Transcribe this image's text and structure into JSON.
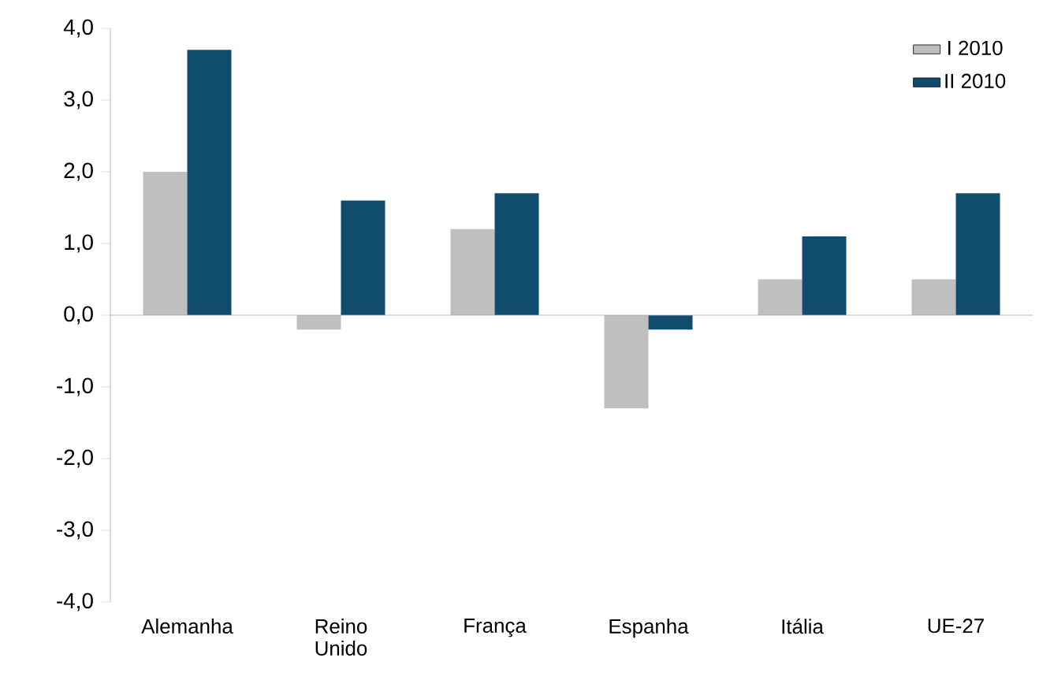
{
  "chart_data": {
    "type": "bar",
    "categories": [
      "Alemanha",
      "Reino Unido",
      "França",
      "Espanha",
      "Itália",
      "UE-27"
    ],
    "series": [
      {
        "name": "I 2010",
        "color": "#bfbfbf",
        "values": [
          2.0,
          -0.2,
          1.2,
          -1.3,
          0.5,
          0.5
        ]
      },
      {
        "name": "II 2010",
        "color": "#0f4c6e",
        "values": [
          3.7,
          1.6,
          1.7,
          -0.2,
          1.1,
          1.7
        ]
      }
    ],
    "ylim": [
      -4,
      4
    ],
    "yticks": [
      {
        "value": -4,
        "label": "-4,0"
      },
      {
        "value": -3,
        "label": "-3,0"
      },
      {
        "value": -2,
        "label": "-2,0"
      },
      {
        "value": -1,
        "label": "-1,0"
      },
      {
        "value": 0,
        "label": "0,0"
      },
      {
        "value": 1,
        "label": "1,0"
      },
      {
        "value": 2,
        "label": "2,0"
      },
      {
        "value": 3,
        "label": "3,0"
      },
      {
        "value": 4,
        "label": "4,0"
      }
    ],
    "legend": "top right"
  }
}
